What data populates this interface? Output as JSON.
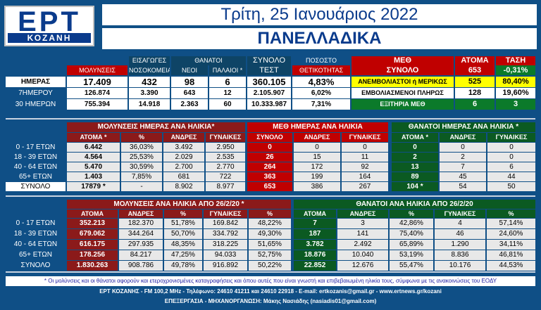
{
  "logo": {
    "main": "ΕΡΤ",
    "sub": "ΚΟΖΑΝΗ"
  },
  "title": "Τρίτη, 25 Ιανουάριος 2022",
  "subtitle": "ΠΑΝΕΛΛΑΔΙΚΑ",
  "top": {
    "headers": {
      "eisagoges_1": "ΕΙΣΑΓΩΓΕΣ",
      "eisagoges_2": "ΝΟΣΟΚΟΜΕΙΑ",
      "thanatoi": "ΘΑΝΑΤΟΙ",
      "neoi": "ΝΕΟΙ",
      "palaioi": "ΠΑΛΑΙΟΙ *",
      "synolo_1": "ΣΥΝΟΛΟ",
      "synolo_2": "ΤΕΣΤ",
      "pososto_1": "ΠΟΣΟΣΤΟ",
      "pososto_2": "ΘΕΤΙΚΟΤΗΤΑΣ",
      "molynseis": "ΜΟΛΥΝΣΕΙΣ"
    },
    "rows": [
      {
        "label": "ΗΜΕΡΑΣ",
        "molynseis": "17.409",
        "eisagoges": "432",
        "neoi": "98",
        "palaioi": "6",
        "test": "360.105",
        "pososto": "4,83%"
      },
      {
        "label": "7ΗΜΕΡΟΥ",
        "molynseis": "126.874",
        "eisagoges": "3.390",
        "neoi": "643",
        "palaioi": "12",
        "test": "2.105.907",
        "pososto": "6,02%"
      },
      {
        "label": "30 ΗΜΕΡΩΝ",
        "molynseis": "755.394",
        "eisagoges": "14.918",
        "neoi": "2.363",
        "palaioi": "60",
        "test": "10.333.987",
        "pososto": "7,31%"
      }
    ]
  },
  "meth": {
    "h_meth": "ΜΕΘ",
    "h_synolo": "ΣΥΝΟΛΟ",
    "h_atoma": "ΑΤΟΜΑ",
    "h_tasi": "ΤΑΣΗ",
    "total": "653",
    "tasi": "-0,31%",
    "rows": [
      {
        "label": "ΑΝΕΜΒΟΛΙΑΣΤΟΙ ή ΜΕΡΙΚΩΣ",
        "value": "525",
        "pct": "80,40%"
      },
      {
        "label": "ΕΜΒΟΛΙΑΣΜΕΝΟΙ ΠΛΗΡΩΣ",
        "value": "128",
        "pct": "19,60%"
      },
      {
        "label": "ΕΞΙΤΗΡΙΑ ΜΕΘ",
        "value": "6",
        "pct": "3"
      }
    ]
  },
  "mid": {
    "h_molynseis": "ΜΟΛΥΝΣΕΙΣ ΗΜΕΡΑΣ ΑΝΑ ΗΛΙΚΙΑ*",
    "h_meth": "ΜΕΘ ΗΜΕΡΑΣ ΑΝΑ ΗΛΙΚΙΑ",
    "h_thanatoi": "ΘΑΝΑΤΟΙ ΗΜΕΡΑΣ ΑΝΑ ΗΛΙΚΙΑ *",
    "cols": {
      "atoma": "ΑΤΟΜΑ *",
      "pct": "%",
      "andres": "ΑΝΔΡΕΣ",
      "gynaikes": "ΓΥΝΑΙΚΕΣ",
      "synolo": "ΣΥΝΟΛΟ",
      "atoma2": "ΑΤΟΜΑ *"
    },
    "rows": [
      {
        "label": "0 - 17 ΕΤΩΝ",
        "m_atoma": "6.442",
        "m_pct": "36,03%",
        "m_andres": "3.492",
        "m_gyn": "2.950",
        "e_syn": "0",
        "e_andres": "0",
        "e_gyn": "0",
        "t_atoma": "0",
        "t_andres": "0",
        "t_gyn": "0"
      },
      {
        "label": "18 - 39 ΕΤΩΝ",
        "m_atoma": "4.564",
        "m_pct": "25,53%",
        "m_andres": "2.029",
        "m_gyn": "2.535",
        "e_syn": "26",
        "e_andres": "15",
        "e_gyn": "11",
        "t_atoma": "2",
        "t_andres": "2",
        "t_gyn": "0"
      },
      {
        "label": "40 - 64 ΕΤΩΝ",
        "m_atoma": "5.470",
        "m_pct": "30,59%",
        "m_andres": "2.700",
        "m_gyn": "2.770",
        "e_syn": "264",
        "e_andres": "172",
        "e_gyn": "92",
        "t_atoma": "13",
        "t_andres": "7",
        "t_gyn": "6"
      },
      {
        "label": "65+ ΕΤΩΝ",
        "m_atoma": "1.403",
        "m_pct": "7,85%",
        "m_andres": "681",
        "m_gyn": "722",
        "e_syn": "363",
        "e_andres": "199",
        "e_gyn": "164",
        "t_atoma": "89",
        "t_andres": "45",
        "t_gyn": "44"
      },
      {
        "label": "ΣΥΝΟΛΟ",
        "m_atoma": "17879 *",
        "m_pct": "-",
        "m_andres": "8.902",
        "m_gyn": "8.977",
        "e_syn": "653",
        "e_andres": "386",
        "e_gyn": "267",
        "t_atoma": "104 *",
        "t_andres": "54",
        "t_gyn": "50"
      }
    ]
  },
  "bottom": {
    "h_molynseis": "ΜΟΛΥΝΣΕΙΣ ΑΝΑ ΗΛΙΚΙΑ ΑΠΟ 26/2/20 *",
    "h_thanatoi": "ΘΑΝΑΤΟΙ ΑΝΑ ΗΛΙΚΙΑ ΑΠΟ 26/2/20",
    "cols": {
      "atoma": "ΑΤΟΜΑ",
      "andres": "ΑΝΔΡΕΣ",
      "pct": "%",
      "gynaikes": "ΓΥΝΑΙΚΕΣ"
    },
    "rows": [
      {
        "label": "0 - 17 ΕΤΩΝ",
        "m_atoma": "352.213",
        "m_andres": "182.370",
        "m_pa": "51,78%",
        "m_gyn": "169.842",
        "m_pg": "48,22%",
        "t_atoma": "7",
        "t_andres": "3",
        "t_pa": "42,86%",
        "t_gyn": "4",
        "t_pg": "57,14%"
      },
      {
        "label": "18 - 39 ΕΤΩΝ",
        "m_atoma": "679.062",
        "m_andres": "344.264",
        "m_pa": "50,70%",
        "m_gyn": "334.792",
        "m_pg": "49,30%",
        "t_atoma": "187",
        "t_andres": "141",
        "t_pa": "75,40%",
        "t_gyn": "46",
        "t_pg": "24,60%"
      },
      {
        "label": "40 - 64 ΕΤΩΝ",
        "m_atoma": "616.175",
        "m_andres": "297.935",
        "m_pa": "48,35%",
        "m_gyn": "318.225",
        "m_pg": "51,65%",
        "t_atoma": "3.782",
        "t_andres": "2.492",
        "t_pa": "65,89%",
        "t_gyn": "1.290",
        "t_pg": "34,11%"
      },
      {
        "label": "65+ ΕΤΩΝ",
        "m_atoma": "178.256",
        "m_andres": "84.217",
        "m_pa": "47,25%",
        "m_gyn": "94.033",
        "m_pg": "52,75%",
        "t_atoma": "18.876",
        "t_andres": "10.040",
        "t_pa": "53,19%",
        "t_gyn": "8.836",
        "t_pg": "46,81%"
      },
      {
        "label": "ΣΥΝΟΛΟ",
        "m_atoma": "1.830.263",
        "m_andres": "908.786",
        "m_pa": "49,78%",
        "m_gyn": "916.892",
        "m_pg": "50,22%",
        "t_atoma": "22.852",
        "t_andres": "12.676",
        "t_pa": "55,47%",
        "t_gyn": "10.176",
        "t_pg": "44,53%"
      }
    ]
  },
  "footer": {
    "note": "* Οι μολύνσεις και οι θάνατοι αφορούν και ετεροχρονισμένες καταγραφήσεις και όπου αυτές που είναι γνωστή και επιβεβαιωμένη ηλικία τους, σύμφωνα με τις ανακοινώσεις του ΕΟΔΥ",
    "contact": "ΕΡΤ ΚΟΖΑΝΗΣ - FM 100,2 MHz - Τηλέφωνο: 24610 41211 και 24610 22918 - E-mail: ertkozanis@gmail.gr - www.ertnews.gr/kozani",
    "credit": "ΕΠΕΞΕΡΓΑΣΙΑ - ΜΗΧΑΝΟΡΓΑΝΩΣΗ: Μάκης Νασιάδης (nasiadis01@gmail.com)"
  }
}
